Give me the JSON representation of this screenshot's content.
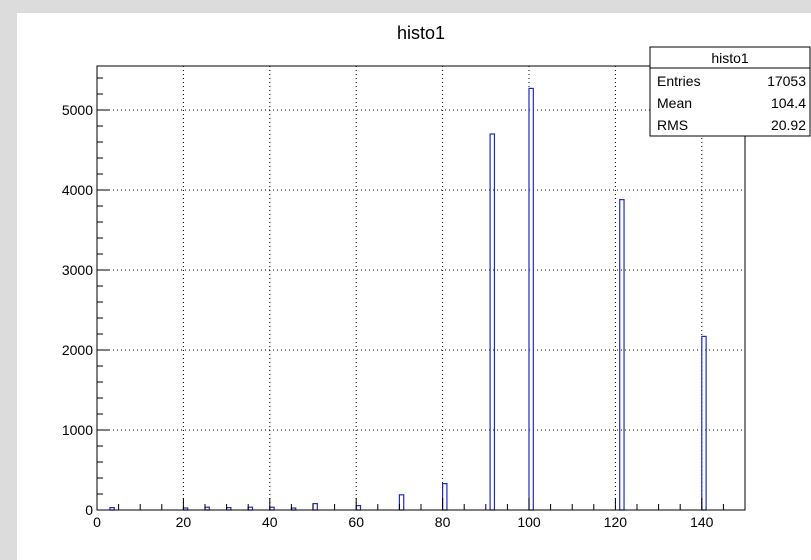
{
  "chart_data": {
    "type": "bar",
    "title": "histo1",
    "xlabel": "",
    "ylabel": "",
    "xlim": [
      0,
      150
    ],
    "ylim": [
      0,
      5550
    ],
    "bin_width": 1,
    "x_ticks": [
      0,
      20,
      40,
      60,
      80,
      100,
      120,
      140
    ],
    "y_ticks": [
      0,
      1000,
      2000,
      3000,
      4000,
      5000
    ],
    "grid": true,
    "bars": [
      {
        "x": 3,
        "value": 30
      },
      {
        "x": 20,
        "value": 25
      },
      {
        "x": 25,
        "value": 35
      },
      {
        "x": 30,
        "value": 30
      },
      {
        "x": 35,
        "value": 35
      },
      {
        "x": 40,
        "value": 35
      },
      {
        "x": 45,
        "value": 25
      },
      {
        "x": 50,
        "value": 80
      },
      {
        "x": 60,
        "value": 55
      },
      {
        "x": 70,
        "value": 190
      },
      {
        "x": 80,
        "value": 330
      },
      {
        "x": 91,
        "value": 4700
      },
      {
        "x": 100,
        "value": 5270
      },
      {
        "x": 121,
        "value": 3880
      },
      {
        "x": 140,
        "value": 2170
      }
    ],
    "color": "#1f2dbf",
    "stats_box": {
      "title": "histo1",
      "position": "top-right",
      "rows": [
        {
          "label": "Entries",
          "value": "17053"
        },
        {
          "label": "Mean",
          "value": "104.4"
        },
        {
          "label": "RMS",
          "value": "20.92"
        }
      ]
    }
  }
}
